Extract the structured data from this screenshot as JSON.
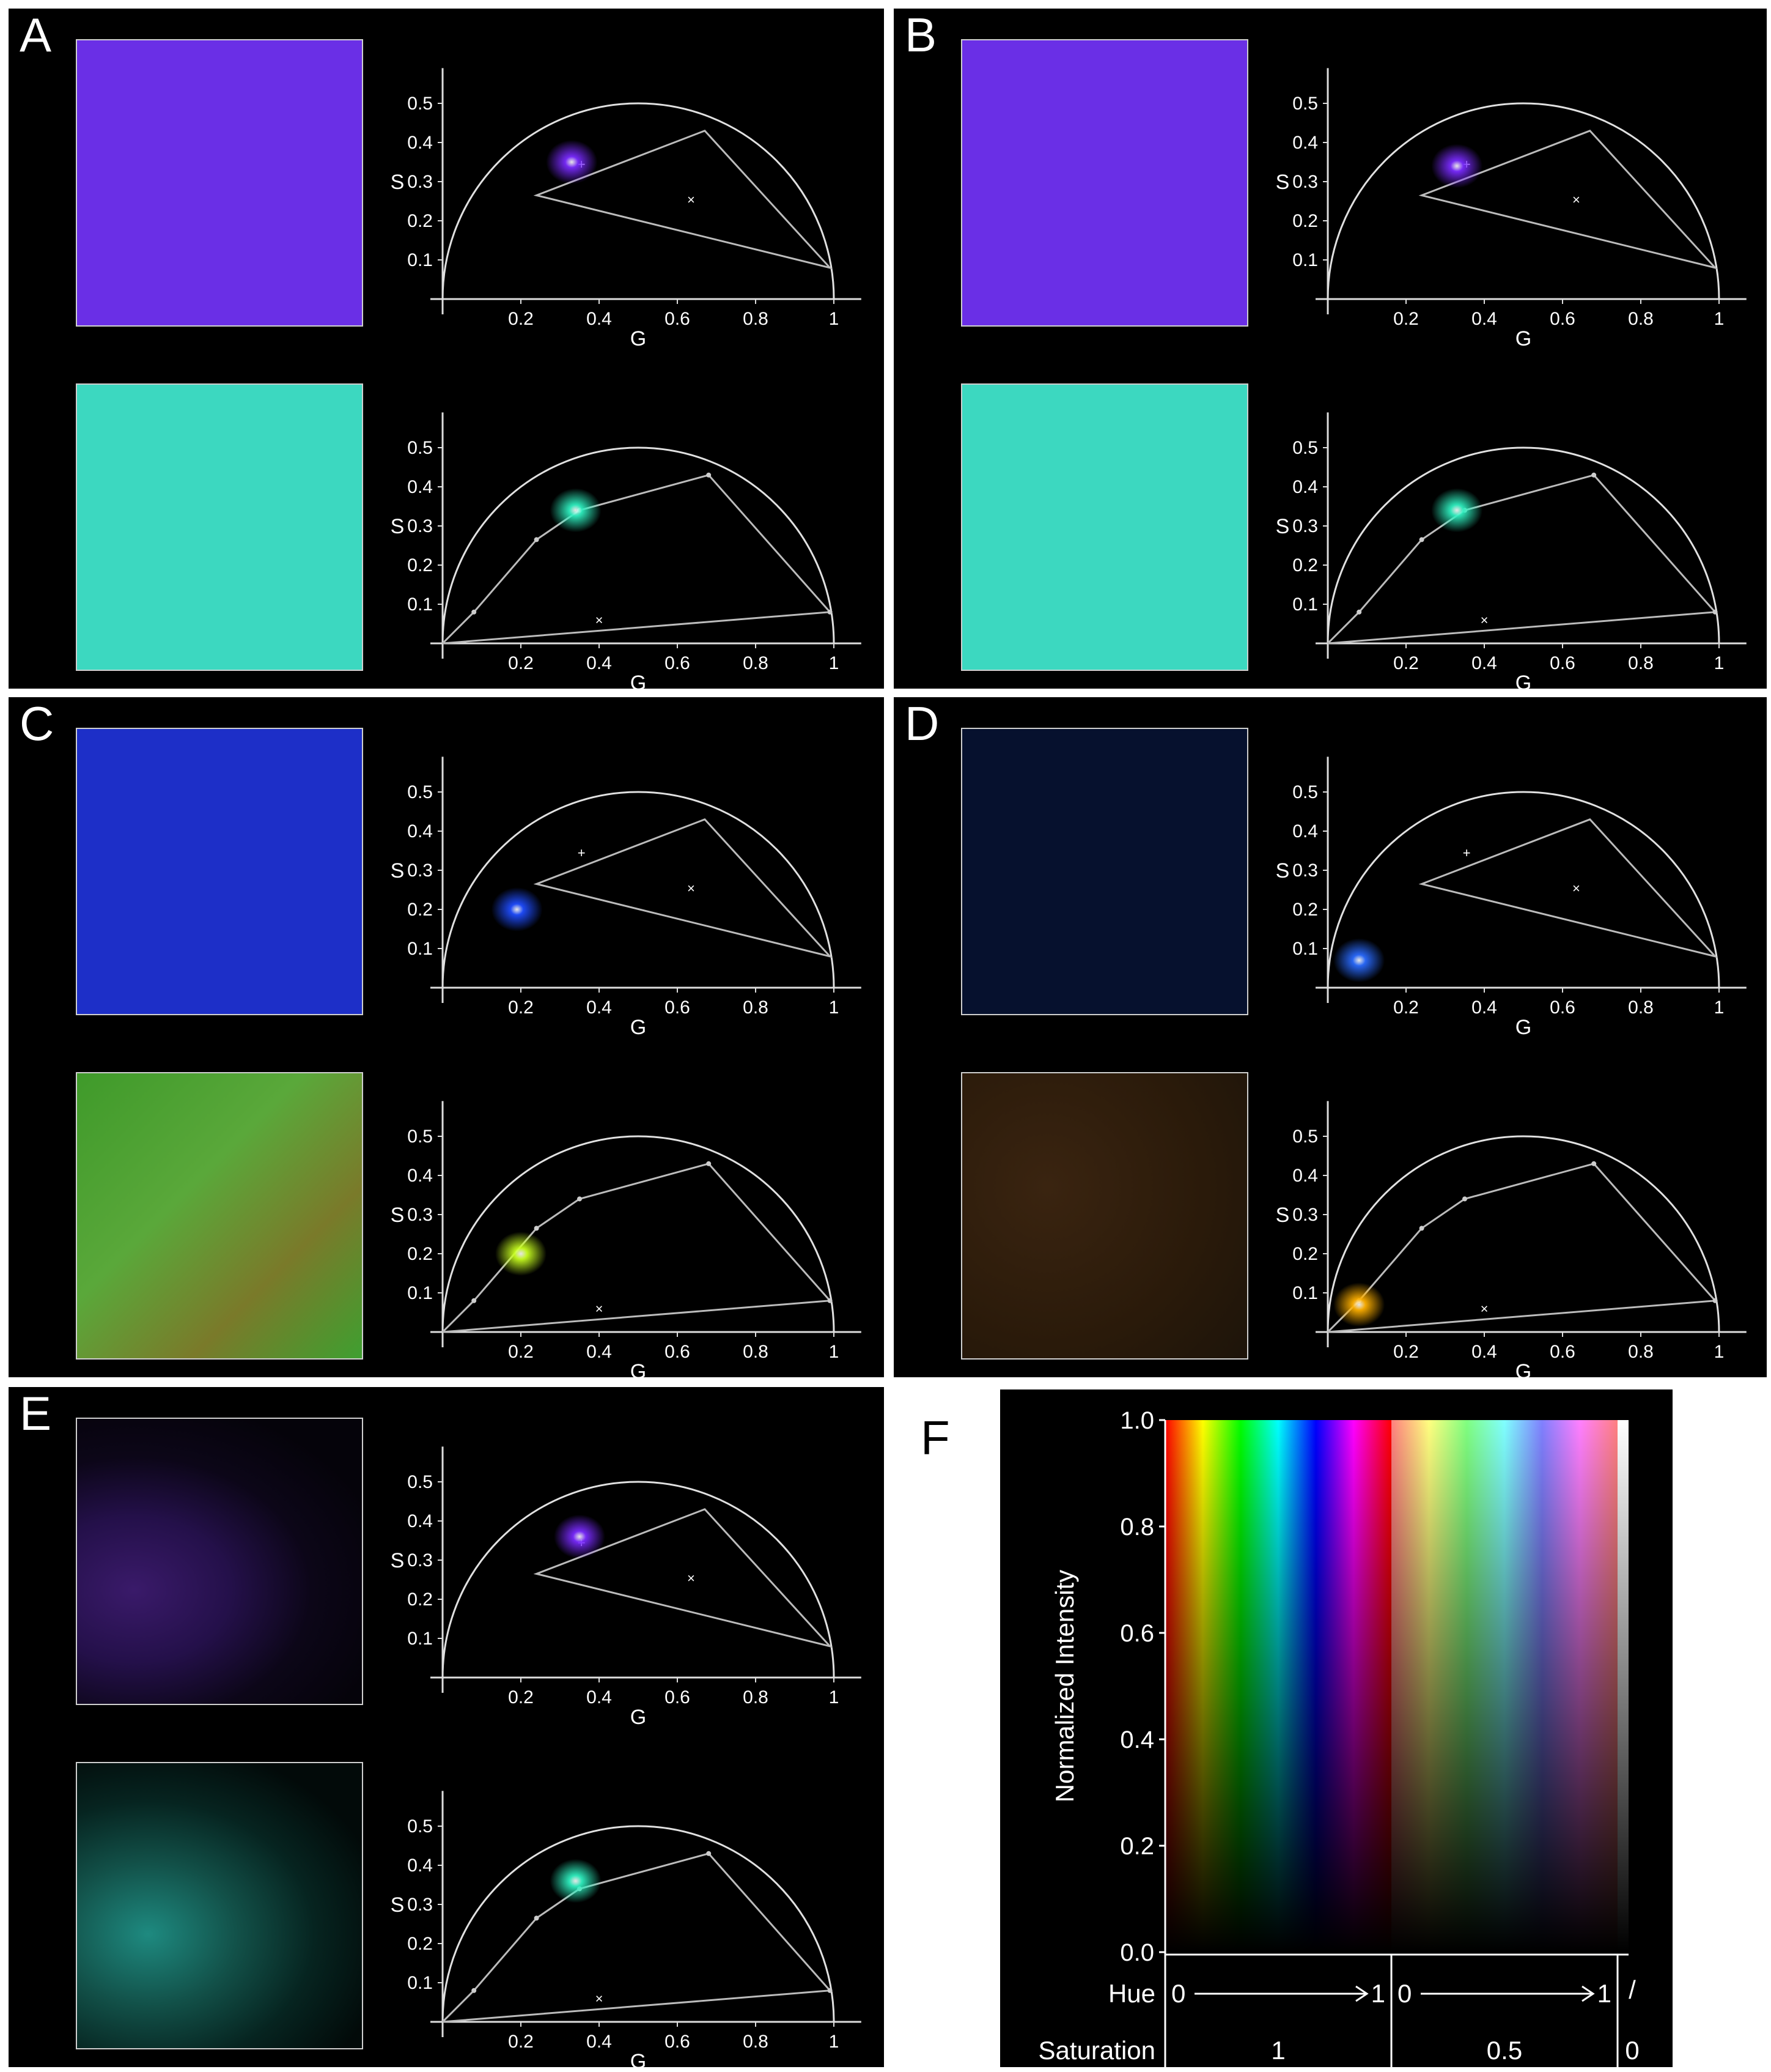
{
  "panels": [
    {
      "label": "A",
      "rows": [
        {
          "image": "uniform-violet",
          "plot": "triangle",
          "spot": {
            "g": 0.33,
            "s": 0.35,
            "color": "#7a2bff"
          }
        },
        {
          "image": "uniform-cyan",
          "plot": "path",
          "spot": {
            "g": 0.34,
            "s": 0.34,
            "color": "#2ff0c0"
          }
        }
      ]
    },
    {
      "label": "B",
      "rows": [
        {
          "image": "uniform-violet",
          "plot": "triangle",
          "spot": {
            "g": 0.33,
            "s": 0.34,
            "color": "#7a2bff"
          }
        },
        {
          "image": "uniform-cyan",
          "plot": "path",
          "spot": {
            "g": 0.33,
            "s": 0.34,
            "color": "#2ff0c0"
          }
        }
      ]
    },
    {
      "label": "C",
      "rows": [
        {
          "image": "uniform-blue",
          "plot": "triangle",
          "spot": {
            "g": 0.19,
            "s": 0.2,
            "color": "#1f4dff"
          }
        },
        {
          "image": "green-red",
          "plot": "path",
          "spot": {
            "g": 0.2,
            "s": 0.2,
            "color": "#c8ff20"
          }
        }
      ]
    },
    {
      "label": "D",
      "rows": [
        {
          "image": "dark-blue",
          "plot": "triangle",
          "spot": {
            "g": 0.08,
            "s": 0.07,
            "color": "#2a6bff"
          }
        },
        {
          "image": "dark-red-green",
          "plot": "path",
          "spot": {
            "g": 0.08,
            "s": 0.07,
            "color": "#ffb000"
          }
        }
      ]
    },
    {
      "label": "E",
      "rows": [
        {
          "image": "tissue-violet",
          "plot": "triangle",
          "spot": {
            "g": 0.35,
            "s": 0.36,
            "color": "#7a2bff"
          }
        },
        {
          "image": "tissue-cyan",
          "plot": "path",
          "spot": {
            "g": 0.34,
            "s": 0.36,
            "color": "#2ff0c0"
          }
        }
      ]
    }
  ],
  "phasor_axes": {
    "xlabel": "G",
    "ylabel": "S",
    "xticks": [
      "0.2",
      "0.4",
      "0.6",
      "0.8",
      "1"
    ],
    "yticks": [
      "0.1",
      "0.2",
      "0.3",
      "0.4",
      "0.5"
    ]
  },
  "colormap": {
    "label": "F",
    "ylabel": "Normalized Intensity",
    "yticks": [
      "0.0",
      "0.2",
      "0.4",
      "0.6",
      "0.8",
      "1.0"
    ],
    "hue_label": "Hue",
    "saturation_label": "Saturation",
    "hue_start": "0",
    "hue_end": "1",
    "sat_full": "1",
    "sat_half": "0.5",
    "sat_zero": "0",
    "slash": "/"
  }
}
